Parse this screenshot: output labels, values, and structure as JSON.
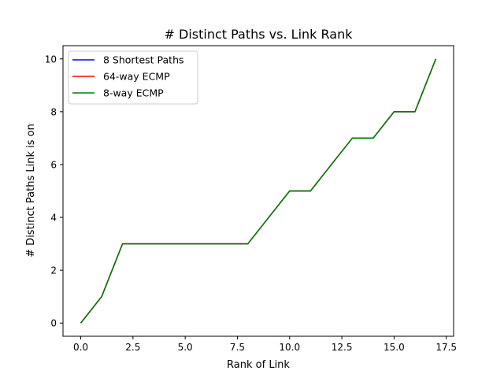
{
  "chart_data": {
    "type": "line",
    "title": "# Distinct Paths vs. Link Rank",
    "xlabel": "Rank of Link",
    "ylabel": "# Distinct Paths Link is on",
    "xlim": [
      -0.85,
      17.85
    ],
    "ylim": [
      -0.5,
      10.5
    ],
    "xticks": [
      0.0,
      2.5,
      5.0,
      7.5,
      10.0,
      12.5,
      15.0,
      17.5
    ],
    "xtick_labels": [
      "0.0",
      "2.5",
      "5.0",
      "7.5",
      "10.0",
      "12.5",
      "15.0",
      "17.5"
    ],
    "yticks": [
      0,
      2,
      4,
      6,
      8,
      10
    ],
    "ytick_labels": [
      "0",
      "2",
      "4",
      "6",
      "8",
      "10"
    ],
    "grid": false,
    "legend_position": "top-left",
    "x": [
      0,
      1,
      2,
      3,
      4,
      5,
      6,
      7,
      8,
      9,
      10,
      11,
      12,
      13,
      14,
      15,
      16,
      17
    ],
    "series": [
      {
        "name": "8 Shortest Paths",
        "color": "#0000ff",
        "values": [
          0,
          1,
          3,
          3,
          3,
          3,
          3,
          3,
          3,
          4,
          5,
          5,
          6,
          7,
          7,
          8,
          8,
          10
        ]
      },
      {
        "name": "64-way ECMP",
        "color": "#ff0000",
        "values": [
          0,
          1,
          3,
          3,
          3,
          3,
          3,
          3,
          3,
          4,
          5,
          5,
          6,
          7,
          7,
          8,
          8,
          10
        ]
      },
      {
        "name": "8-way ECMP",
        "color": "#008000",
        "values": [
          0,
          1,
          3,
          3,
          3,
          3,
          3,
          3,
          3,
          4,
          5,
          5,
          6,
          7,
          7,
          8,
          8,
          10
        ]
      }
    ]
  }
}
